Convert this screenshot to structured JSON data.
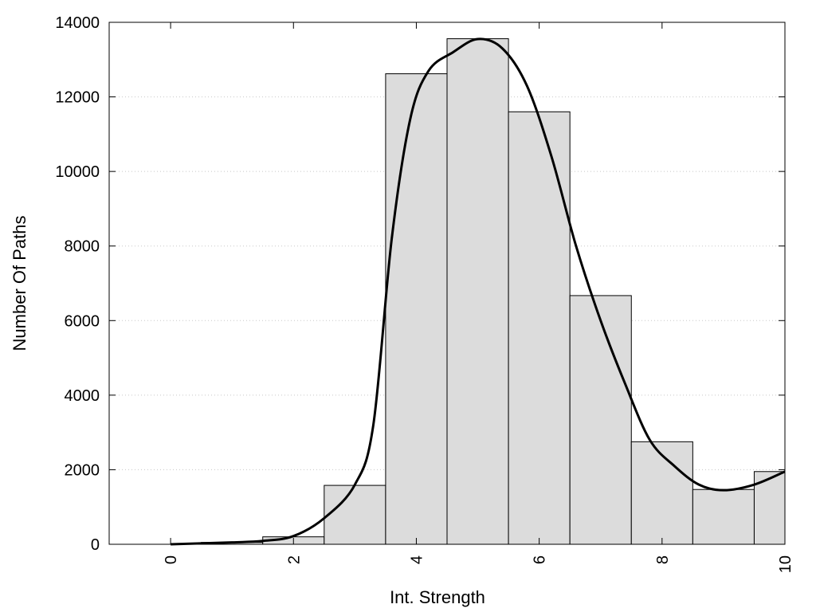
{
  "chart_data": {
    "type": "bar",
    "title": "",
    "xlabel": "Int. Strength",
    "ylabel": "Number Of Paths",
    "xlim": [
      -1,
      10
    ],
    "ylim": [
      0,
      14000
    ],
    "grid": "horizontal dotted",
    "x_ticks": [
      0,
      2,
      4,
      6,
      8,
      10
    ],
    "y_ticks": [
      0,
      2000,
      4000,
      6000,
      8000,
      10000,
      12000,
      14000
    ],
    "bins": [
      {
        "x": 0,
        "value": 0
      },
      {
        "x": 1,
        "value": 50
      },
      {
        "x": 2,
        "value": 200
      },
      {
        "x": 3,
        "value": 1580
      },
      {
        "x": 4,
        "value": 12620
      },
      {
        "x": 5,
        "value": 13560
      },
      {
        "x": 6,
        "value": 11600
      },
      {
        "x": 7,
        "value": 6670
      },
      {
        "x": 8,
        "value": 2750
      },
      {
        "x": 9,
        "value": 1470
      },
      {
        "x": 10,
        "value": 1950
      }
    ],
    "curve": {
      "x": [
        0,
        1,
        1.5,
        2,
        2.5,
        3,
        3.3,
        3.6,
        3.9,
        4.2,
        4.6,
        5,
        5.4,
        5.8,
        6.2,
        6.6,
        7,
        7.4,
        7.8,
        8.2,
        8.6,
        9,
        9.5,
        10
      ],
      "y": [
        0,
        50,
        90,
        220,
        700,
        1600,
        3200,
        8200,
        11400,
        12700,
        13200,
        13550,
        13300,
        12300,
        10400,
        8000,
        6000,
        4300,
        2800,
        2100,
        1600,
        1450,
        1600,
        1950
      ]
    },
    "bar_color": "#dcdcdc"
  }
}
